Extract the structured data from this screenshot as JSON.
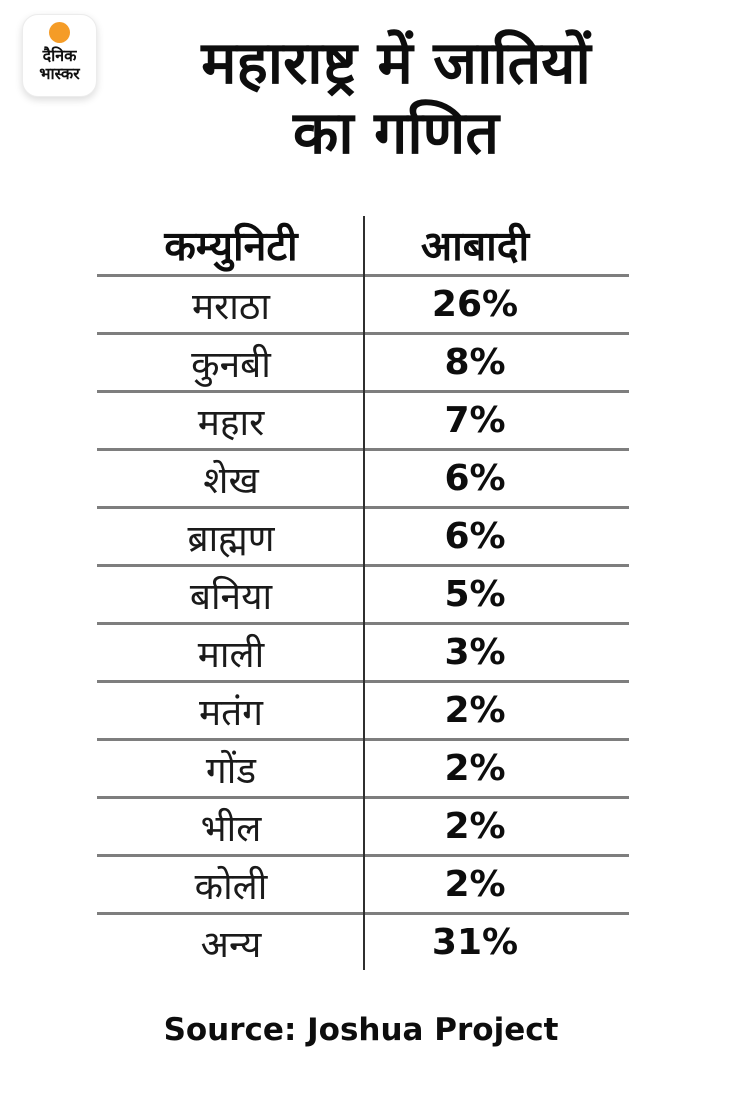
{
  "brand": {
    "name": "dainik-bhaskar-logo",
    "word1": "दैनिक",
    "word2": "भास्कर",
    "sun_color": "#F59C27"
  },
  "title": {
    "line1": "महाराष्ट्र में जातियों",
    "line2": "का गणित"
  },
  "table": {
    "headers": {
      "community": "कम्युनिटी",
      "population": "आबादी"
    },
    "rows": [
      {
        "community": "मराठा",
        "population": "26%"
      },
      {
        "community": "कुनबी",
        "population": "8%"
      },
      {
        "community": "महार",
        "population": "7%"
      },
      {
        "community": "शेख",
        "population": "6%"
      },
      {
        "community": "ब्राह्मण",
        "population": "6%"
      },
      {
        "community": "बनिया",
        "population": "5%"
      },
      {
        "community": "माली",
        "population": "3%"
      },
      {
        "community": "मतंग",
        "population": "2%"
      },
      {
        "community": "गोंड",
        "population": "2%"
      },
      {
        "community": "भील",
        "population": "2%"
      },
      {
        "community": "कोली",
        "population": "2%"
      },
      {
        "community": "अन्य",
        "population": "31%"
      }
    ]
  },
  "footer": {
    "source": "Source: Joshua Project"
  },
  "colors": {
    "background": "#FFFFFF",
    "text": "#0D0D0D",
    "horizontal_rule": "#7E7E7E",
    "vertical_rule": "#2F2F2F",
    "logo_sun": "#F59C27"
  },
  "chart_data": {
    "type": "table",
    "title": "महाराष्ट्र में जातियों का गणित",
    "columns": [
      "कम्युनिटी",
      "आबादी"
    ],
    "categories": [
      "मराठा",
      "कुनबी",
      "महार",
      "शेख",
      "ब्राह्मण",
      "बनिया",
      "माली",
      "मतंग",
      "गोंड",
      "भील",
      "कोली",
      "अन्य"
    ],
    "values": [
      26,
      8,
      7,
      6,
      6,
      5,
      3,
      2,
      2,
      2,
      2,
      31
    ],
    "unit": "%",
    "source": "Joshua Project"
  }
}
